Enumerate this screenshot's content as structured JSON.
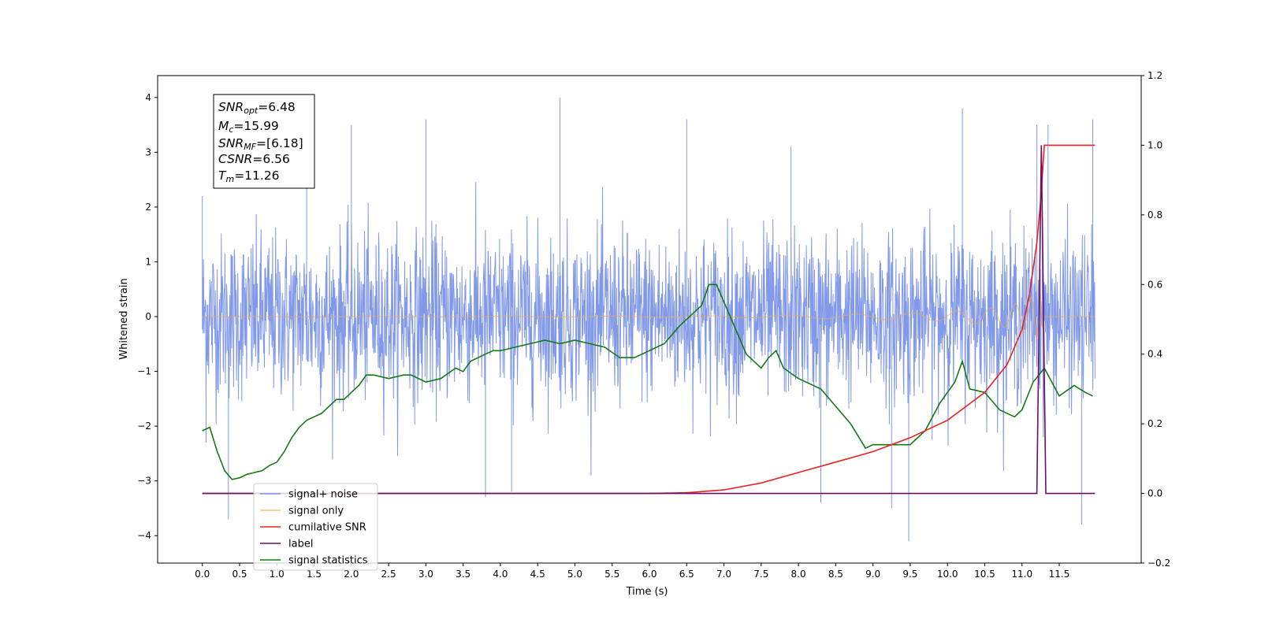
{
  "chart_data": {
    "type": "line",
    "xlabel": "Time (s)",
    "ylabel_left": "Whitened strain",
    "ylabel_right": "",
    "xlim": [
      -0.6,
      12.6
    ],
    "ylim_left": [
      -4.5,
      4.4
    ],
    "ylim_right": [
      -0.2,
      1.2
    ],
    "x_ticks": [
      0.0,
      0.5,
      1.0,
      1.5,
      2.0,
      2.5,
      3.0,
      3.5,
      4.0,
      4.5,
      5.0,
      5.5,
      6.0,
      6.5,
      7.0,
      7.5,
      8.0,
      8.5,
      9.0,
      9.5,
      10.0,
      10.5,
      11.0,
      11.5
    ],
    "x_tick_labels": [
      "0.0",
      "0.5",
      "1.0",
      "1.5",
      "2.0",
      "2.5",
      "3.0",
      "3.5",
      "4.0",
      "4.5",
      "5.0",
      "5.5",
      "6.0",
      "6.5",
      "7.0",
      "7.5",
      "8.0",
      "8.5",
      "9.0",
      "9.5",
      "10.0",
      "10.5",
      "11.0",
      "11.5"
    ],
    "y_left_ticks": [
      4,
      3,
      2,
      1,
      0,
      -1,
      -2,
      -3,
      -4
    ],
    "y_left_tick_labels": [
      "4",
      "3",
      "2",
      "1",
      "0",
      "−1",
      "−2",
      "−3",
      "−4"
    ],
    "y_right_ticks": [
      1.2,
      1.0,
      0.8,
      0.6,
      0.4,
      0.2,
      0.0,
      -0.2
    ],
    "y_right_tick_labels": [
      "1.2",
      "1.0",
      "0.8",
      "0.6",
      "0.4",
      "0.2",
      "0.0",
      "−0.2"
    ],
    "grid": false,
    "legend_position": "lower-left",
    "series": [
      {
        "name": "signal+ noise",
        "axis": "left",
        "color": "#7b93e8",
        "description_values": "noise band approx ±1.7 with spikes up to ~4.0 and down to ~-4.1",
        "spikes": [
          [
            0.0,
            2.2
          ],
          [
            0.05,
            -2.3
          ],
          [
            0.35,
            -3.7
          ],
          [
            1.4,
            3.1
          ],
          [
            2.0,
            3.5
          ],
          [
            3.0,
            3.6
          ],
          [
            3.8,
            -3.3
          ],
          [
            4.15,
            -3.2
          ],
          [
            4.8,
            4.0
          ],
          [
            6.5,
            3.6
          ],
          [
            7.9,
            3.1
          ],
          [
            8.3,
            -3.4
          ],
          [
            9.25,
            -3.5
          ],
          [
            9.48,
            -4.1
          ],
          [
            10.2,
            3.8
          ],
          [
            11.2,
            3.5
          ],
          [
            11.35,
            3.5
          ],
          [
            11.8,
            -3.8
          ],
          [
            11.95,
            3.6
          ]
        ]
      },
      {
        "name": "signal only",
        "axis": "left",
        "color": "#f5a742",
        "envelope": [
          [
            0.0,
            0.0
          ],
          [
            6.5,
            0.01
          ],
          [
            8.0,
            0.03
          ],
          [
            9.0,
            0.05
          ],
          [
            10.0,
            0.09
          ],
          [
            10.5,
            0.14
          ],
          [
            10.8,
            0.2
          ],
          [
            11.0,
            0.27
          ],
          [
            11.15,
            0.37
          ],
          [
            11.25,
            0.45
          ],
          [
            11.3,
            0.0
          ],
          [
            12.0,
            0.0
          ]
        ]
      },
      {
        "name": "cumilative SNR",
        "axis": "right",
        "color": "#e8231f",
        "x": [
          0.0,
          6.0,
          6.5,
          7.0,
          7.5,
          8.0,
          8.5,
          9.0,
          9.5,
          10.0,
          10.5,
          10.8,
          11.0,
          11.1,
          11.2,
          11.25,
          11.3,
          11.98
        ],
        "y": [
          0.0,
          0.0,
          0.002,
          0.01,
          0.03,
          0.06,
          0.09,
          0.12,
          0.16,
          0.21,
          0.29,
          0.37,
          0.47,
          0.57,
          0.72,
          0.84,
          1.0,
          1.0
        ]
      },
      {
        "name": "label",
        "axis": "right",
        "color": "#6b0f6b",
        "x": [
          0.0,
          11.2,
          11.26,
          11.32,
          11.98
        ],
        "y": [
          0.0,
          0.0,
          1.0,
          0.0,
          0.0
        ]
      },
      {
        "name": "signal statistics",
        "axis": "right",
        "color": "#147a14",
        "x": [
          0.0,
          0.1,
          0.2,
          0.3,
          0.4,
          0.5,
          0.6,
          0.7,
          0.8,
          0.9,
          1.0,
          1.1,
          1.2,
          1.3,
          1.4,
          1.5,
          1.6,
          1.7,
          1.8,
          1.9,
          2.0,
          2.1,
          2.2,
          2.3,
          2.5,
          2.7,
          2.8,
          3.0,
          3.2,
          3.4,
          3.5,
          3.6,
          3.8,
          3.9,
          4.0,
          4.2,
          4.4,
          4.6,
          4.8,
          5.0,
          5.2,
          5.4,
          5.6,
          5.8,
          6.0,
          6.2,
          6.4,
          6.6,
          6.7,
          6.8,
          6.9,
          7.0,
          7.1,
          7.3,
          7.5,
          7.6,
          7.7,
          7.8,
          8.0,
          8.3,
          8.5,
          8.7,
          8.9,
          9.0,
          9.2,
          9.4,
          9.5,
          9.7,
          9.9,
          10.1,
          10.2,
          10.3,
          10.5,
          10.7,
          10.9,
          11.0,
          11.15,
          11.3,
          11.5,
          11.7,
          11.85,
          11.95
        ],
        "y": [
          0.18,
          0.19,
          0.12,
          0.065,
          0.04,
          0.045,
          0.055,
          0.06,
          0.065,
          0.08,
          0.09,
          0.12,
          0.16,
          0.19,
          0.21,
          0.22,
          0.23,
          0.25,
          0.27,
          0.27,
          0.29,
          0.31,
          0.34,
          0.34,
          0.33,
          0.34,
          0.34,
          0.32,
          0.33,
          0.36,
          0.35,
          0.38,
          0.4,
          0.41,
          0.41,
          0.42,
          0.43,
          0.44,
          0.43,
          0.44,
          0.43,
          0.42,
          0.39,
          0.39,
          0.41,
          0.43,
          0.48,
          0.52,
          0.54,
          0.6,
          0.6,
          0.55,
          0.5,
          0.4,
          0.36,
          0.39,
          0.41,
          0.36,
          0.33,
          0.3,
          0.25,
          0.2,
          0.13,
          0.14,
          0.14,
          0.14,
          0.14,
          0.18,
          0.26,
          0.32,
          0.38,
          0.3,
          0.29,
          0.24,
          0.22,
          0.24,
          0.32,
          0.36,
          0.28,
          0.31,
          0.29,
          0.28
        ]
      }
    ],
    "info_box": [
      {
        "label_main": "SNR",
        "label_sub": "opt",
        "value": "=6.48"
      },
      {
        "label_main": "M",
        "label_sub": "c",
        "value": "=15.99"
      },
      {
        "label_main": "SNR",
        "label_sub": "MF",
        "value": "=[6.18]"
      },
      {
        "label_main": "CSNR",
        "label_sub": "",
        "value": "=6.56"
      },
      {
        "label_main": "T",
        "label_sub": "m",
        "value": "=11.26"
      }
    ]
  }
}
